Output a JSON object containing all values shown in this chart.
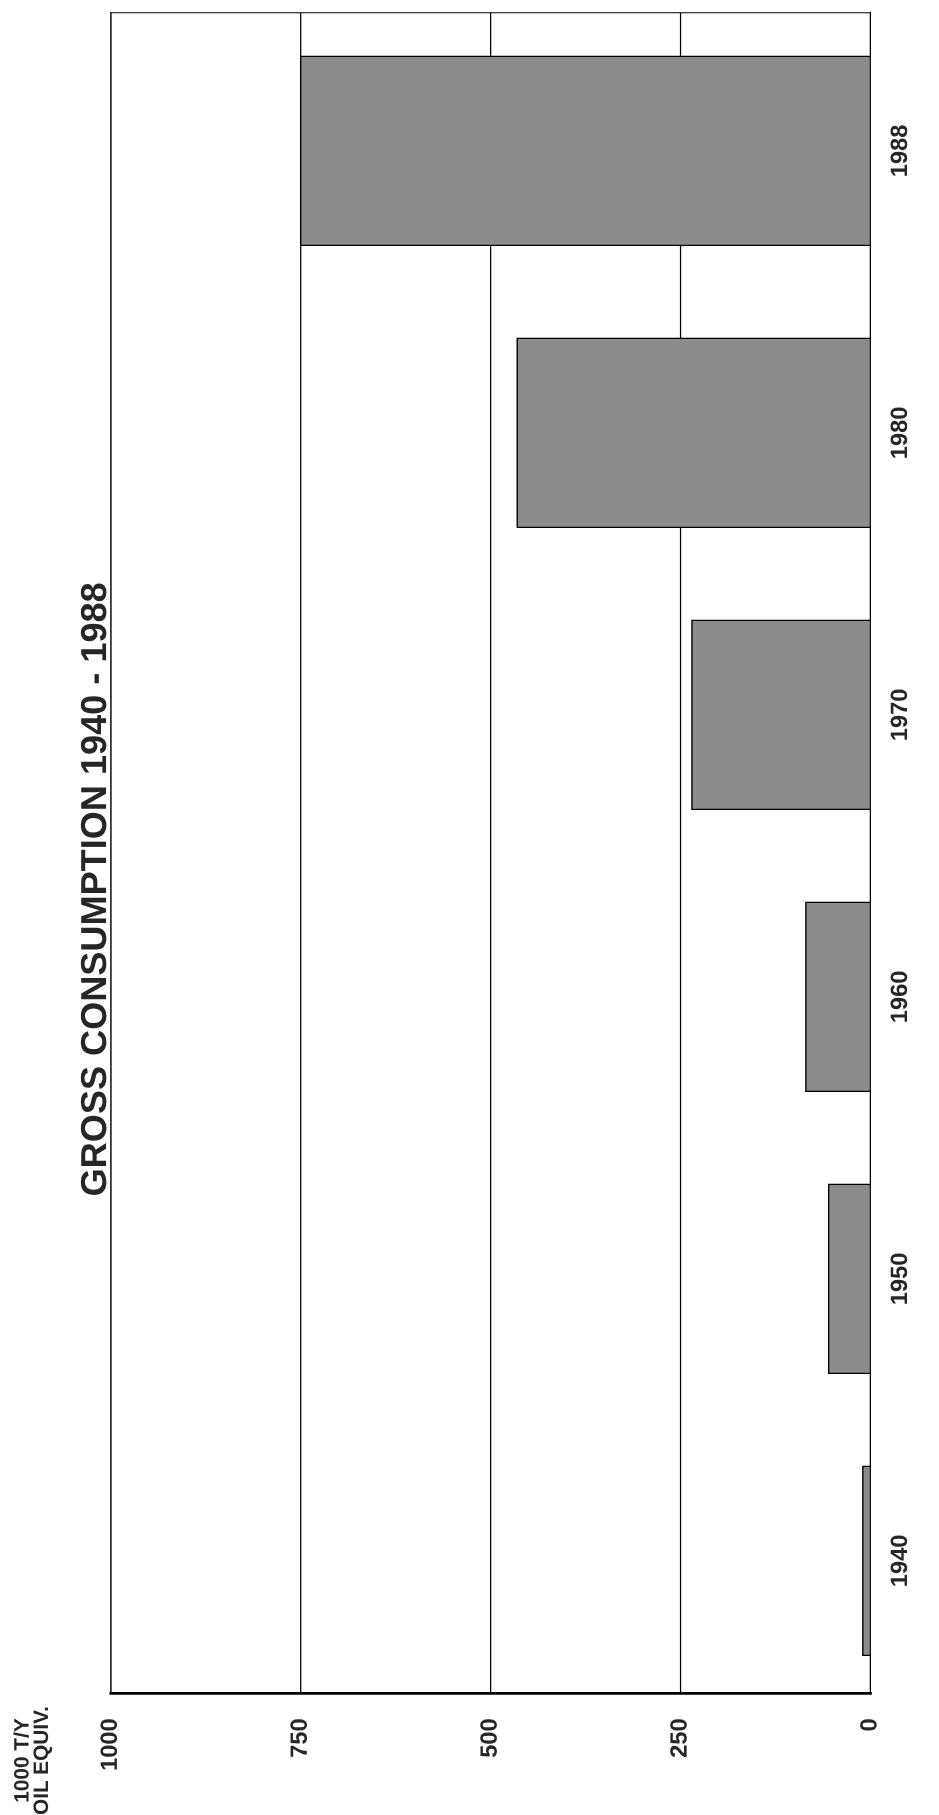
{
  "chart_data": {
    "type": "bar",
    "orientation": "horizontal",
    "title": "GROSS CONSUMPTION 1940 - 1988",
    "annotations": [
      "1000 T/Y\nOIL EQUIV."
    ],
    "categories": [
      "1988",
      "1980",
      "1970",
      "1960",
      "1950",
      "1940"
    ],
    "values": [
      750,
      465,
      235,
      85,
      55,
      10
    ],
    "color": "#8c8c8c",
    "xlim": [
      1000,
      0
    ],
    "xticks": [
      1000,
      750,
      500,
      250,
      0
    ],
    "grid": "x"
  }
}
